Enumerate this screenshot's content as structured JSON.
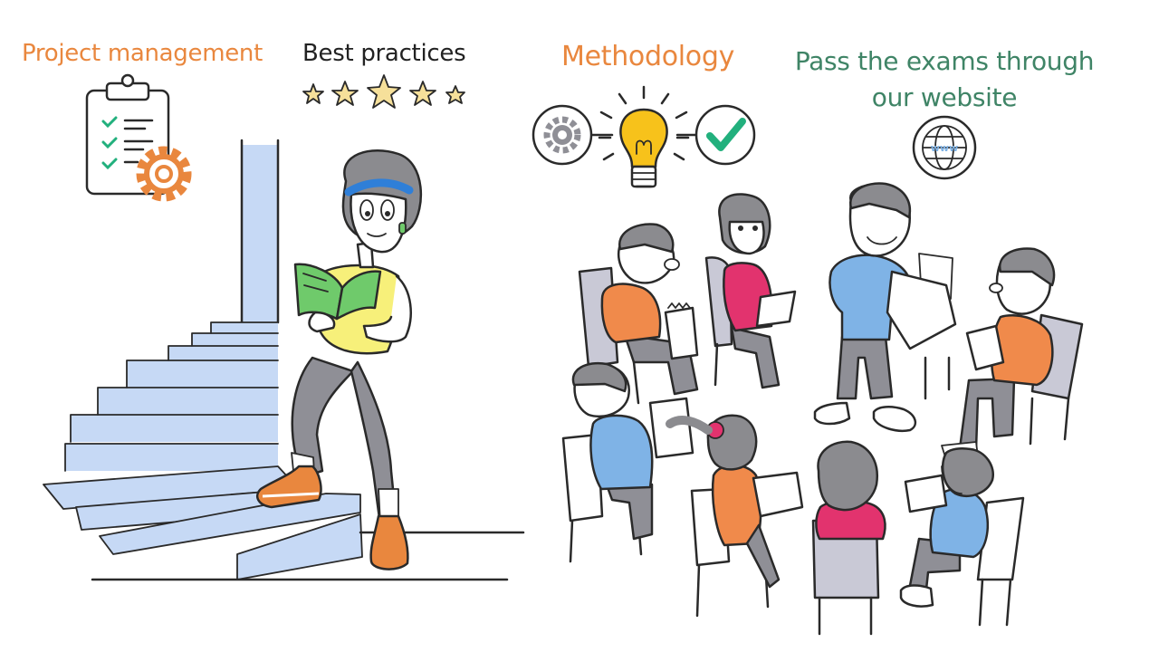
{
  "headings": {
    "project_management": "Project management",
    "best_practices": "Best practices",
    "methodology": "Methodology",
    "pass_exams_line1": "Pass the exams through",
    "pass_exams_line2": "our website"
  },
  "website_badge": "www",
  "colors": {
    "orange": "#e9873e",
    "green_text": "#3f8466",
    "dark_text": "#222222",
    "check_green": "#22b07d",
    "stair_blue": "#c6d9f5",
    "bulb_yellow": "#f7c21b",
    "star_yellow": "#f6e09a",
    "shirt_yellow": "#f7f07a",
    "book_green": "#6fca6b",
    "shirt_orange": "#f08a4b",
    "shirt_pink": "#e2336e",
    "shirt_blue": "#7fb3e6",
    "chair_grey": "#c9c9d6",
    "pants_grey": "#8f8f96",
    "hair_grey": "#8b8b8f",
    "headband_blue": "#2f7fd8",
    "ink": "#2a2a2a"
  }
}
